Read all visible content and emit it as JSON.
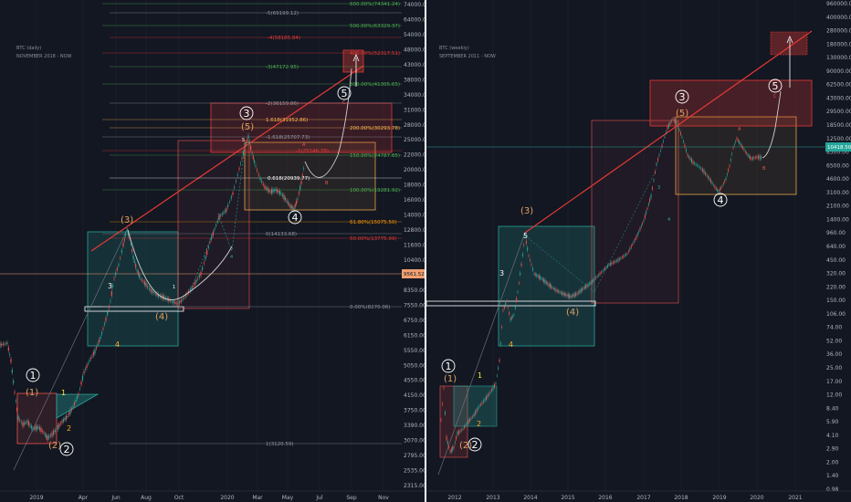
{
  "chart_data": [
    {
      "type": "line",
      "title": "BTC (daily)",
      "subtitle": "NOVEMBER 2018 - NOW",
      "y_scale": "log",
      "y_ticks": [
        "74000.00",
        "64000.00",
        "54000.00",
        "48000.00",
        "43000.00",
        "38000.00",
        "34000.00",
        "31000.00",
        "28000.00",
        "25000.00",
        "22000.00",
        "20000.00",
        "18000.00",
        "16000.00",
        "14000.00",
        "12800.00",
        "11600.00",
        "10400.00",
        "9350.00",
        "8350.00",
        "7550.00",
        "6750.00",
        "6150.00",
        "5550.00",
        "5050.00",
        "4550.00",
        "4150.00",
        "3750.00",
        "3390.00",
        "3070.00",
        "2795.00",
        "2535.00",
        "2315.00"
      ],
      "x_ticks": [
        "2019",
        "Apr",
        "Jun",
        "Aug",
        "Oct",
        "2020",
        "Mar",
        "May",
        "Jul",
        "Sep",
        "Nov"
      ],
      "price_label": "9561.52",
      "fib_levels": [
        {
          "label": "600.00%(74341.24)",
          "color": "#4caf50"
        },
        {
          "label": "-5(69199.12)",
          "color": "#9598a1"
        },
        {
          "label": "500.00%(63329.37)",
          "color": "#4caf50"
        },
        {
          "label": "-4(58185.84)",
          "color": "#e53935"
        },
        {
          "label": "400.00%(52317.51)",
          "color": "#e53935"
        },
        {
          "label": "-3(47172.95)",
          "color": "#4caf50"
        },
        {
          "label": "300.00%(41305.65)",
          "color": "#4caf50"
        },
        {
          "label": "-2(36159.86)",
          "color": "#9598a1"
        },
        {
          "label": "1.618(31952.86)",
          "color": "#ffb74d"
        },
        {
          "label": "200.00%(30293.78)",
          "color": "#ffb74d"
        },
        {
          "label": "-1.618(25707.73)",
          "color": "#9598a1"
        },
        {
          "label": "150.00%(24787.85)",
          "color": "#4caf50"
        },
        {
          "label": "-1(25146.78)",
          "color": "#e53935"
        },
        {
          "label": "0.618(20939.77)",
          "color": "#ffffff"
        },
        {
          "label": "100.00%(19281.92)",
          "color": "#4caf50"
        },
        {
          "label": "61.80%(15075.50)",
          "color": "#ff9800"
        },
        {
          "label": "0(14133.68)",
          "color": "#9598a1"
        },
        {
          "label": "50.00%(13775.99)",
          "color": "#e53935"
        },
        {
          "label": "0.00%(8270.06)",
          "color": "#9598a1"
        },
        {
          "label": "1(3120.59)",
          "color": "#9598a1"
        }
      ],
      "wave_labels": [
        "1",
        "2",
        "3",
        "4",
        "5",
        "(1)",
        "(2)",
        "(3)",
        "(4)",
        "(5)"
      ],
      "small_labels": [
        "1",
        "2",
        "3",
        "4",
        "5",
        "A",
        "B",
        "C",
        "1",
        "3",
        "4"
      ]
    },
    {
      "type": "line",
      "title": "BTC (weekly)",
      "subtitle": "SEPTEMBER 2011 - NOW",
      "y_scale": "log",
      "y_ticks": [
        "960000.00",
        "400000.00",
        "280000.00",
        "180000.00",
        "130000.00",
        "90000.00",
        "62500.00",
        "43000.00",
        "29500.00",
        "18500.00",
        "12500.00",
        "8500.00",
        "6500.00",
        "4600.00",
        "3100.00",
        "2100.00",
        "1400.00",
        "960.00",
        "640.00",
        "450.00",
        "320.00",
        "220.00",
        "150.00",
        "106.00",
        "74.00",
        "52.00",
        "36.00",
        "25.00",
        "17.00",
        "12.00",
        "8.40",
        "5.90",
        "4.10",
        "2.90",
        "2.00",
        "1.40",
        "0.98"
      ],
      "x_ticks": [
        "2012",
        "2013",
        "2014",
        "2015",
        "2016",
        "2017",
        "2018",
        "2019",
        "2020",
        "2021"
      ],
      "price_label": "10418.50",
      "wave_labels": [
        "1",
        "2",
        "3",
        "4",
        "5",
        "(1)",
        "(2)",
        "(3)",
        "(4)",
        "(5)"
      ],
      "small_labels": [
        "1",
        "2",
        "3",
        "4",
        "5",
        "A",
        "B",
        "C",
        "3",
        "4"
      ]
    }
  ]
}
